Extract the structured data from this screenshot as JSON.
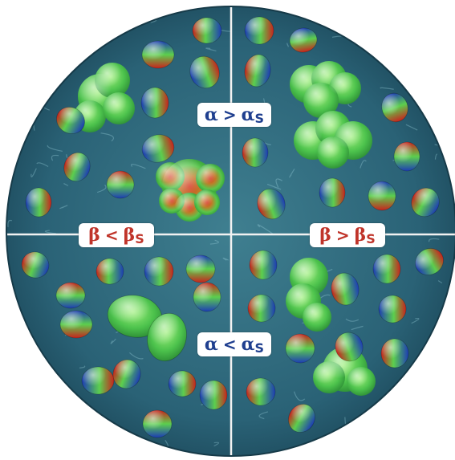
{
  "labels": {
    "top": {
      "sym": "α",
      "op": ">",
      "sub_sym": "α",
      "sub": "S",
      "color": "#1f3f8f"
    },
    "bottom": {
      "sym": "α",
      "op": "<",
      "sub_sym": "α",
      "sub": "S",
      "color": "#1f3f8f"
    },
    "left": {
      "sym": "β",
      "op": "<",
      "sub_sym": "β",
      "sub": "S",
      "color": "#c0342a"
    },
    "right": {
      "sym": "β",
      "op": ">",
      "sub_sym": "β",
      "sub": "S",
      "color": "#c0342a"
    }
  },
  "colors": {
    "water_dark": "#1d4f63",
    "water_light": "#4f8fa0",
    "axis_line": "#f2f2f2",
    "blob_green": "#4fc95a",
    "blob_red": "#d8332a",
    "blob_blue": "#1f3fb0"
  }
}
